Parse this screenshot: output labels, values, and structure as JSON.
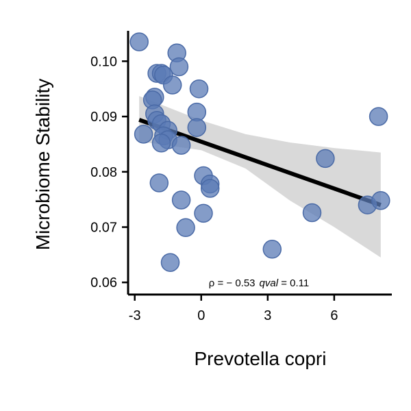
{
  "chart_data": {
    "type": "scatter",
    "title": "",
    "xlabel": "Prevotella copri",
    "ylabel": "Microbiome Stability",
    "xlim": [
      -3.3,
      8.6
    ],
    "ylim": [
      0.0578,
      0.1055
    ],
    "x_ticks": [
      -3,
      0,
      3,
      6
    ],
    "x_tick_labels": [
      "-3",
      "0",
      "3",
      "6"
    ],
    "y_ticks": [
      0.06,
      0.07,
      0.08,
      0.09,
      0.1
    ],
    "y_tick_labels": [
      "0.06",
      "0.07",
      "0.08",
      "0.09",
      "0.10"
    ],
    "grid": false,
    "annotation": {
      "rho_text": "ρ = − 0.53",
      "qval_label": "qval",
      "qval_text": " = 0.11"
    },
    "point_color": "#5b7bb6",
    "line_color": "#000000",
    "band_color": "#d9d9d9",
    "points": [
      {
        "x": -2.8,
        "y": 0.1035
      },
      {
        "x": -1.1,
        "y": 0.1015
      },
      {
        "x": -1.0,
        "y": 0.099
      },
      {
        "x": -2.0,
        "y": 0.0978
      },
      {
        "x": -1.8,
        "y": 0.0978
      },
      {
        "x": -1.7,
        "y": 0.0975
      },
      {
        "x": -1.3,
        "y": 0.0957
      },
      {
        "x": -0.1,
        "y": 0.095
      },
      {
        "x": -2.1,
        "y": 0.0935
      },
      {
        "x": -2.2,
        "y": 0.093
      },
      {
        "x": -0.2,
        "y": 0.0908
      },
      {
        "x": -2.1,
        "y": 0.0905
      },
      {
        "x": -2.0,
        "y": 0.0893
      },
      {
        "x": -1.8,
        "y": 0.0887
      },
      {
        "x": -0.2,
        "y": 0.088
      },
      {
        "x": -1.5,
        "y": 0.0875
      },
      {
        "x": -2.6,
        "y": 0.0868
      },
      {
        "x": -1.7,
        "y": 0.0865
      },
      {
        "x": -1.5,
        "y": 0.0858
      },
      {
        "x": -1.8,
        "y": 0.0852
      },
      {
        "x": -0.9,
        "y": 0.0848
      },
      {
        "x": 8.0,
        "y": 0.09
      },
      {
        "x": 5.6,
        "y": 0.0824
      },
      {
        "x": 0.1,
        "y": 0.0793
      },
      {
        "x": 0.4,
        "y": 0.0778
      },
      {
        "x": 0.4,
        "y": 0.077
      },
      {
        "x": -1.9,
        "y": 0.078
      },
      {
        "x": -0.9,
        "y": 0.0749
      },
      {
        "x": 7.5,
        "y": 0.074
      },
      {
        "x": 8.1,
        "y": 0.0748
      },
      {
        "x": 0.1,
        "y": 0.0725
      },
      {
        "x": 5.0,
        "y": 0.0726
      },
      {
        "x": -0.7,
        "y": 0.0699
      },
      {
        "x": 3.2,
        "y": 0.066
      },
      {
        "x": -1.4,
        "y": 0.0636
      }
    ],
    "regression": {
      "x": [
        -2.8,
        8.1
      ],
      "y": [
        0.0894,
        0.074
      ]
    },
    "confidence_band": {
      "x": [
        -2.8,
        0.0,
        2.0,
        4.0,
        6.0,
        8.1
      ],
      "upper": [
        0.0937,
        0.0893,
        0.0868,
        0.0853,
        0.0843,
        0.0835
      ],
      "lower": [
        0.0855,
        0.0839,
        0.0806,
        0.0748,
        0.07,
        0.0645
      ]
    }
  }
}
